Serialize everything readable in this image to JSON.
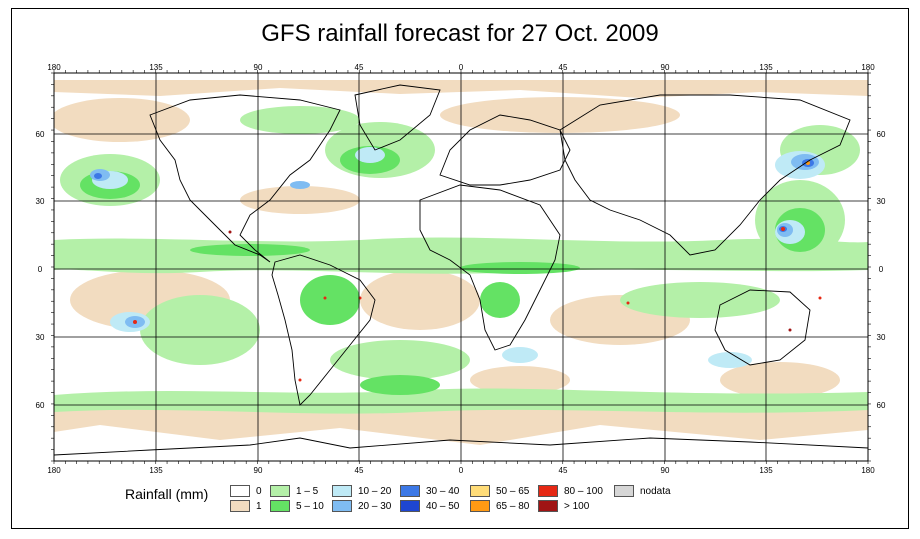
{
  "title": "GFS rainfall forecast for 27 Oct. 2009",
  "longitude_ticks": [
    "180",
    "135",
    "90",
    "45",
    "0",
    "45",
    "90",
    "135",
    "180"
  ],
  "latitude_ticks": [
    "60",
    "30",
    "0",
    "30",
    "60"
  ],
  "legend": {
    "title": "Rainfall (mm)",
    "items": [
      {
        "label": "0",
        "color": "#ffffff"
      },
      {
        "label": "1",
        "color": "#f2dcc0"
      },
      {
        "label": "1 – 5",
        "color": "#b4f0a8"
      },
      {
        "label": "5 – 10",
        "color": "#64e264"
      },
      {
        "label": "10 – 20",
        "color": "#bfeaf6"
      },
      {
        "label": "20 – 30",
        "color": "#7fbcf2"
      },
      {
        "label": "30 – 40",
        "color": "#3c78e6"
      },
      {
        "label": "40 – 50",
        "color": "#1e46d2"
      },
      {
        "label": "50 – 65",
        "color": "#ffdc78"
      },
      {
        "label": "65 – 80",
        "color": "#ff9a14"
      },
      {
        "label": "80 – 100",
        "color": "#e62814"
      },
      {
        "label": "> 100",
        "color": "#a01414"
      },
      {
        "label": "nodata",
        "color": "#d6d6d6"
      }
    ]
  }
}
